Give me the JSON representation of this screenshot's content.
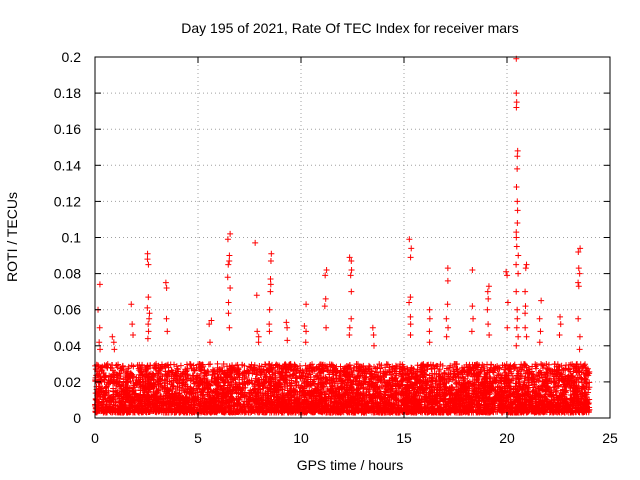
{
  "chart_data": {
    "type": "scatter",
    "title": "Day 195 of 2021, Rate Of TEC Index for receiver mars",
    "xlabel": "GPS time / hours",
    "ylabel": "ROTI / TECUs",
    "xlim": [
      0,
      25
    ],
    "ylim": [
      0,
      0.2
    ],
    "xticks": [
      "0",
      "5",
      "10",
      "15",
      "20",
      "25"
    ],
    "yticks": [
      "0",
      "0.02",
      "0.04",
      "0.06",
      "0.08",
      "0.1",
      "0.12",
      "0.14",
      "0.16",
      "0.18",
      "0.2"
    ],
    "grid": true,
    "marker": "+",
    "color": "#ff0000",
    "series": [
      {
        "name": "ROTI",
        "baseline_range": [
          0.003,
          0.03
        ],
        "x_range": [
          0,
          24
        ],
        "points_per_hour": 260,
        "spikes": [
          {
            "x": 0.2,
            "values": [
              0.074,
              0.06,
              0.05,
              0.042,
              0.038
            ]
          },
          {
            "x": 0.9,
            "values": [
              0.045,
              0.042,
              0.038
            ]
          },
          {
            "x": 1.8,
            "values": [
              0.063,
              0.052,
              0.046
            ]
          },
          {
            "x": 2.6,
            "values": [
              0.091,
              0.088,
              0.085,
              0.067,
              0.061,
              0.058,
              0.055,
              0.052,
              0.048,
              0.044
            ]
          },
          {
            "x": 3.5,
            "values": [
              0.075,
              0.072,
              0.055,
              0.048
            ]
          },
          {
            "x": 5.6,
            "values": [
              0.054,
              0.052,
              0.042
            ]
          },
          {
            "x": 6.5,
            "values": [
              0.102,
              0.099,
              0.09,
              0.087,
              0.085,
              0.078,
              0.072,
              0.064,
              0.058,
              0.05
            ]
          },
          {
            "x": 7.8,
            "values": [
              0.097
            ]
          },
          {
            "x": 7.9,
            "values": [
              0.068,
              0.048,
              0.045,
              0.042
            ]
          },
          {
            "x": 8.5,
            "values": [
              0.091,
              0.087,
              0.077,
              0.074,
              0.07,
              0.06,
              0.052,
              0.048
            ]
          },
          {
            "x": 9.3,
            "values": [
              0.053,
              0.05,
              0.043
            ]
          },
          {
            "x": 10.2,
            "values": [
              0.063,
              0.051,
              0.048,
              0.042
            ]
          },
          {
            "x": 11.2,
            "values": [
              0.082,
              0.079,
              0.066,
              0.062,
              0.05
            ]
          },
          {
            "x": 12.4,
            "values": [
              0.089,
              0.087,
              0.082,
              0.079,
              0.07,
              0.055,
              0.05,
              0.046
            ]
          },
          {
            "x": 13.5,
            "values": [
              0.05,
              0.046,
              0.04
            ]
          },
          {
            "x": 15.3,
            "values": [
              0.099,
              0.094,
              0.089,
              0.067,
              0.064,
              0.056,
              0.052,
              0.046
            ]
          },
          {
            "x": 16.2,
            "values": [
              0.06,
              0.055,
              0.048,
              0.042
            ]
          },
          {
            "x": 17.1,
            "values": [
              0.083,
              0.076,
              0.063,
              0.055,
              0.05,
              0.045
            ]
          },
          {
            "x": 18.3,
            "values": [
              0.082,
              0.062,
              0.055,
              0.048
            ]
          },
          {
            "x": 19.1,
            "values": [
              0.073,
              0.07,
              0.066,
              0.06,
              0.052,
              0.046
            ]
          },
          {
            "x": 20.0,
            "values": [
              0.081,
              0.079,
              0.064,
              0.05
            ]
          },
          {
            "x": 20.5,
            "values": [
              0.199,
              0.18,
              0.175,
              0.172,
              0.148,
              0.145,
              0.138,
              0.128,
              0.12,
              0.115,
              0.108,
              0.103,
              0.1,
              0.095,
              0.09,
              0.085,
              0.08,
              0.07,
              0.06,
              0.055,
              0.05,
              0.045,
              0.04
            ]
          },
          {
            "x": 20.9,
            "values": [
              0.085,
              0.083,
              0.07,
              0.062,
              0.058,
              0.05,
              0.045
            ]
          },
          {
            "x": 21.6,
            "values": [
              0.065,
              0.055,
              0.048,
              0.042
            ]
          },
          {
            "x": 22.6,
            "values": [
              0.056,
              0.052,
              0.046
            ]
          },
          {
            "x": 23.5,
            "values": [
              0.094,
              0.092,
              0.083,
              0.08,
              0.075,
              0.073,
              0.055,
              0.045,
              0.038
            ]
          }
        ]
      }
    ]
  }
}
